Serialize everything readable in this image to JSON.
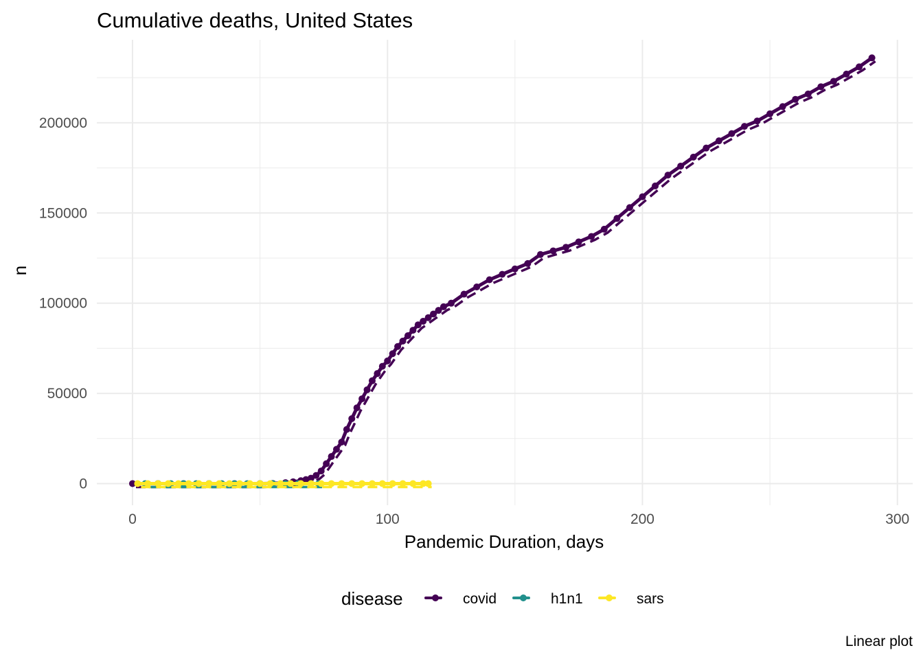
{
  "chart_data": {
    "type": "line",
    "title": "Cumulative deaths, United States",
    "xlabel": "Pandemic Duration, days",
    "ylabel": "n",
    "caption": "Linear plot",
    "xlim": [
      -14,
      306
    ],
    "ylim": [
      -12000,
      246000
    ],
    "x_ticks": [
      0,
      100,
      200,
      300
    ],
    "x_tick_labels": [
      "0",
      "100",
      "200",
      "300"
    ],
    "y_ticks": [
      0,
      50000,
      100000,
      150000,
      200000
    ],
    "y_tick_labels": [
      "0",
      "50000",
      "100000",
      "150000",
      "200000"
    ],
    "grid": true,
    "legend": {
      "title": "disease",
      "position": "bottom"
    },
    "series": [
      {
        "name": "covid",
        "color": "#440154",
        "x": [
          0,
          10,
          20,
          30,
          40,
          50,
          55,
          60,
          63,
          66,
          68,
          70,
          72,
          74,
          76,
          78,
          80,
          82,
          84,
          86,
          88,
          90,
          92,
          94,
          96,
          98,
          100,
          102,
          104,
          106,
          108,
          110,
          112,
          114,
          116,
          118,
          120,
          122,
          125,
          130,
          135,
          140,
          145,
          150,
          155,
          160,
          165,
          170,
          175,
          180,
          185,
          190,
          195,
          200,
          205,
          210,
          215,
          220,
          225,
          230,
          235,
          240,
          245,
          250,
          255,
          260,
          265,
          270,
          275,
          280,
          285,
          290
        ],
        "y": [
          0,
          0,
          0,
          0,
          0,
          0,
          100,
          500,
          1000,
          1600,
          2200,
          3000,
          4500,
          7000,
          11000,
          15000,
          19000,
          23000,
          30000,
          36000,
          42000,
          47000,
          52000,
          57000,
          61000,
          65000,
          68000,
          72000,
          76000,
          79000,
          82000,
          85000,
          88000,
          90000,
          92000,
          94000,
          96000,
          98000,
          100000,
          105000,
          109000,
          113000,
          116000,
          119000,
          122000,
          127000,
          129000,
          131000,
          134000,
          137000,
          141000,
          147000,
          153000,
          159000,
          165000,
          171000,
          176000,
          181000,
          186000,
          190000,
          194000,
          198000,
          201000,
          205000,
          209000,
          213000,
          216000,
          220000,
          223000,
          227000,
          231000,
          236000
        ]
      },
      {
        "name": "h1n1",
        "color": "#21908C",
        "x": [
          5,
          10,
          15,
          20,
          25,
          30,
          35,
          40,
          45,
          50,
          55,
          60,
          65,
          70,
          73
        ],
        "y": [
          0,
          0,
          0,
          0,
          0,
          0,
          0,
          0,
          0,
          0,
          0,
          0,
          0,
          0,
          0
        ]
      },
      {
        "name": "sars",
        "color": "#FDE725",
        "x": [
          2,
          6,
          10,
          14,
          18,
          22,
          26,
          30,
          34,
          38,
          42,
          46,
          50,
          54,
          58,
          62,
          66,
          70,
          74,
          78,
          82,
          86,
          90,
          94,
          98,
          102,
          106,
          110,
          114,
          116
        ],
        "y": [
          0,
          0,
          0,
          0,
          0,
          0,
          0,
          0,
          0,
          0,
          0,
          0,
          0,
          0,
          0,
          0,
          0,
          0,
          0,
          0,
          0,
          0,
          0,
          0,
          0,
          0,
          0,
          0,
          0,
          0
        ]
      }
    ]
  }
}
